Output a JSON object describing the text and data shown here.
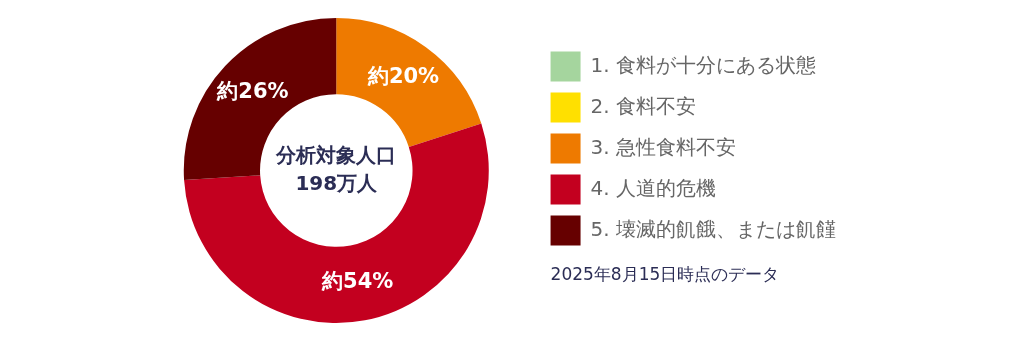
{
  "chart_data": {
    "type": "donut",
    "categories": [
      "1. 食料が十分にある状態",
      "2. 食料不安",
      "3. 急性食料不安",
      "4. 人道的危機",
      "5. 壊滅的飢餓、または飢饉"
    ],
    "values": [
      0,
      0,
      20,
      54,
      26
    ],
    "colors": [
      "#a5d59e",
      "#ffe000",
      "#ee7a00",
      "#c3001f",
      "#660000"
    ],
    "value_labels": [
      null,
      null,
      "約20%",
      "約54%",
      "約26%"
    ],
    "legend": "right",
    "annotations": [
      "分析対象人口",
      "198万人",
      "2025年8月15日時点のデータ"
    ]
  }
}
